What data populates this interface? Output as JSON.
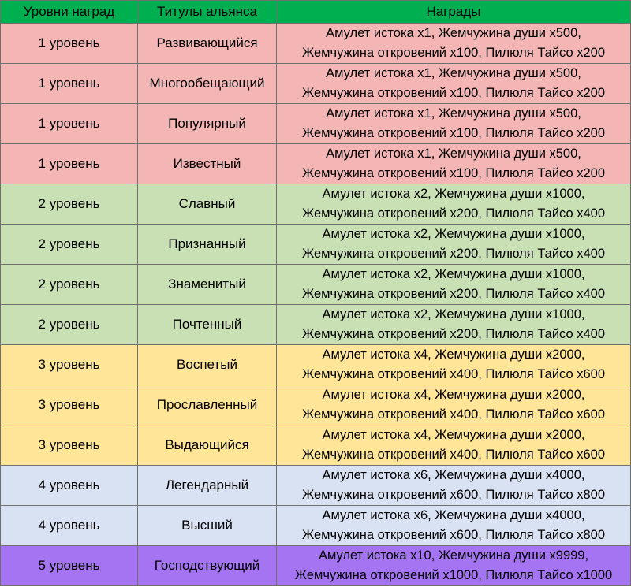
{
  "table": {
    "headers": [
      "Уровни наград",
      "Титулы альянса",
      "Награды"
    ],
    "rows": [
      {
        "level": "1 уровень",
        "title": "Развивающийся",
        "reward_line1": "Амулет истока x1, Жемчужина души x500,",
        "reward_line2": "Жемчужина откровений x100, Пилюля Тайсо x200"
      },
      {
        "level": "1 уровень",
        "title": "Многообещающий",
        "reward_line1": "Амулет истока x1, Жемчужина души x500,",
        "reward_line2": "Жемчужина откровений x100, Пилюля Тайсо x200"
      },
      {
        "level": "1 уровень",
        "title": "Популярный",
        "reward_line1": "Амулет истока x1, Жемчужина души x500,",
        "reward_line2": "Жемчужина откровений x100, Пилюля Тайсо x200"
      },
      {
        "level": "1 уровень",
        "title": "Известный",
        "reward_line1": "Амулет истока x1, Жемчужина души x500,",
        "reward_line2": "Жемчужина откровений x100, Пилюля Тайсо x200"
      },
      {
        "level": "2 уровень",
        "title": "Славный",
        "reward_line1": "Амулет истока x2, Жемчужина души x1000,",
        "reward_line2": "Жемчужина откровений x200, Пилюля Тайсо x400"
      },
      {
        "level": "2 уровень",
        "title": "Признанный",
        "reward_line1": "Амулет истока x2, Жемчужина души x1000,",
        "reward_line2": "Жемчужина откровений x200, Пилюля Тайсо x400"
      },
      {
        "level": "2 уровень",
        "title": "Знаменитый",
        "reward_line1": "Амулет истока x2, Жемчужина души x1000,",
        "reward_line2": "Жемчужина откровений x200, Пилюля Тайсо x400"
      },
      {
        "level": "2 уровень",
        "title": "Почтенный",
        "reward_line1": "Амулет истока x2, Жемчужина души x1000,",
        "reward_line2": "Жемчужина откровений x200, Пилюля Тайсо x400"
      },
      {
        "level": "3 уровень",
        "title": "Воспетый",
        "reward_line1": "Амулет истока x4, Жемчужина души x2000,",
        "reward_line2": "Жемчужина откровений x400, Пилюля Тайсо x600"
      },
      {
        "level": "3 уровень",
        "title": "Прославленный",
        "reward_line1": "Амулет истока x4, Жемчужина души x2000,",
        "reward_line2": "Жемчужина откровений x400, Пилюля Тайсо x600"
      },
      {
        "level": "3 уровень",
        "title": "Выдающийся",
        "reward_line1": "Амулет истока x4, Жемчужина души x2000,",
        "reward_line2": "Жемчужина откровений x400, Пилюля Тайсо x600"
      },
      {
        "level": "4 уровень",
        "title": "Легендарный",
        "reward_line1": "Амулет истока x6, Жемчужина души x4000,",
        "reward_line2": "Жемчужина откровений x600, Пилюля Тайсо x800"
      },
      {
        "level": "4 уровень",
        "title": "Высший",
        "reward_line1": "Амулет истока x6, Жемчужина души x4000,",
        "reward_line2": "Жемчужина откровений x600, Пилюля Тайсо x800"
      },
      {
        "level": "5 уровень",
        "title": "Господствующий",
        "reward_line1": "Амулет истока x10, Жемчужина души x9999,",
        "reward_line2": "Жемчужина откровений x1000, Пилюля Тайсо x1000"
      }
    ]
  },
  "colors": {
    "header": "#00b050",
    "tier_1": "#f4b5b5",
    "tier_2": "#c9e0b4",
    "tier_3": "#ffe597",
    "tier_4": "#d9e2f3",
    "tier_5": "#a474f2",
    "grid": "#6f6f6f"
  }
}
